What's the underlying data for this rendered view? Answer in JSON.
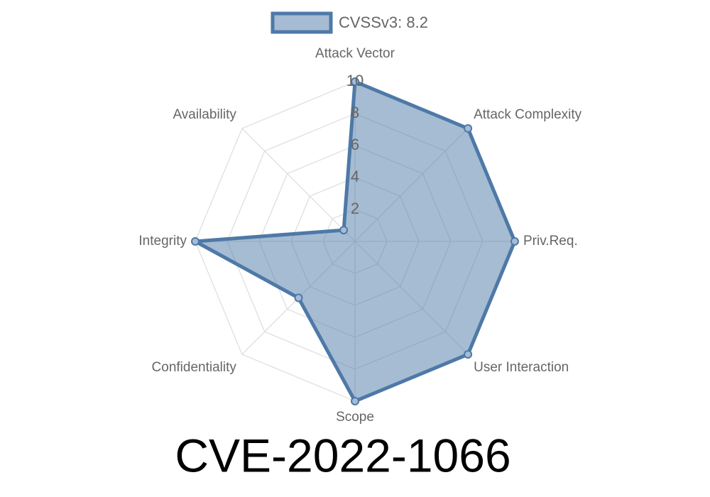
{
  "chart_data": {
    "type": "radar",
    "title": "CVE-2022-1066",
    "categories": [
      "Attack Vector",
      "Attack Complexity",
      "Priv.Req.",
      "User Interaction",
      "Scope",
      "Confidentiality",
      "Integrity",
      "Availability"
    ],
    "series": [
      {
        "name": "CVSSv3: 8.2",
        "color": "#4e79a7",
        "values": [
          10,
          10,
          10,
          10,
          10,
          5,
          10,
          1
        ]
      }
    ],
    "rlim": [
      0,
      10
    ],
    "rticks": [
      2,
      4,
      6,
      8,
      10
    ],
    "grid": true,
    "legend": "top"
  }
}
